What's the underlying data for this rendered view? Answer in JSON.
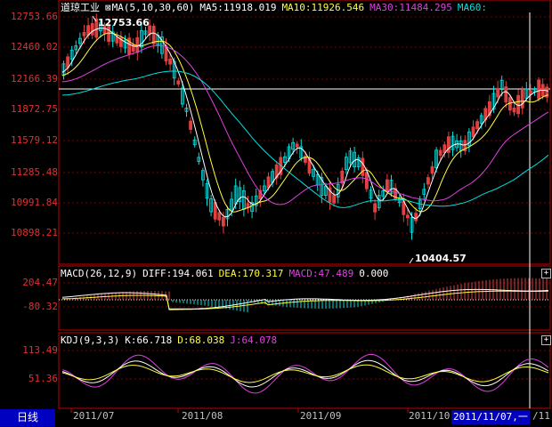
{
  "panel_price": {
    "title": "道琼工业",
    "indicator": "MA(5,10,30,60)",
    "ma5": "MA5:11918.019",
    "ma10": "MA10:11926.546",
    "ma30": "MA30:11484.295",
    "ma60": "MA60:",
    "y_ticks": [
      "12753.66",
      "12460.02",
      "12166.39",
      "11872.75",
      "11579.12",
      "11285.48",
      "10991.84",
      "10898.21"
    ],
    "high_label": "12753.66",
    "low_label": "10404.57"
  },
  "panel_macd": {
    "indicator": "MACD(26,12,9)",
    "diff": "DIFF:194.061",
    "dea": "DEA:170.317",
    "macd": "MACD:47.489",
    "zero": "0.000",
    "y_ticks": [
      "204.47",
      "-80.32"
    ]
  },
  "panel_kdj": {
    "indicator": "KDJ(9,3,3)",
    "k": "K:66.718",
    "d": "D:68.038",
    "j": "J:64.078",
    "y_ticks": [
      "113.49",
      "51.36"
    ]
  },
  "x_ticks": [
    "2011/07",
    "2011/08",
    "2011/09",
    "2011/10"
  ],
  "period_button": "日线",
  "cursor_date": "2011/11/07,一",
  "edge_label": "/11",
  "expand_icon": "+",
  "colors": {
    "up": "#00e0e0",
    "down": "#e04040",
    "ma5": "#ffffff",
    "ma10": "#ffff40",
    "ma30": "#e040e0",
    "ma60": "#00e0e0",
    "axis": "#c00000"
  }
}
